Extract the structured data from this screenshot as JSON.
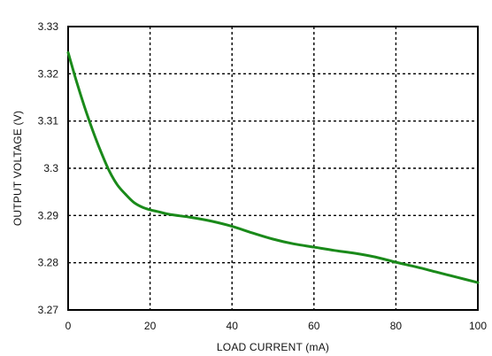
{
  "chart_data": {
    "type": "line",
    "xlabel": "LOAD CURRENT (mA)",
    "ylabel": "OUTPUT VOLTAGE (V)",
    "xlim": [
      0,
      100
    ],
    "ylim": [
      3.27,
      3.33
    ],
    "x_ticks": [
      "0",
      "20",
      "40",
      "60",
      "80",
      "100"
    ],
    "y_ticks": [
      "3.33",
      "3.32",
      "3.31",
      "3.3",
      "3.29",
      "3.28",
      "3.27"
    ],
    "grid": true,
    "series_color": "#1a8a1a",
    "series": [
      {
        "x": [
          0,
          2,
          4,
          6,
          8,
          10,
          12,
          14,
          16,
          18,
          20,
          22,
          25,
          30,
          35,
          40,
          45,
          50,
          55,
          60,
          65,
          70,
          75,
          80,
          85,
          90,
          95,
          100
        ],
        "y": [
          3.3245,
          3.3185,
          3.313,
          3.308,
          3.3035,
          3.2995,
          3.2965,
          3.2945,
          3.2928,
          3.2918,
          3.2912,
          3.2908,
          3.2902,
          3.2896,
          3.2888,
          3.2877,
          3.2863,
          3.285,
          3.284,
          3.2833,
          3.2826,
          3.282,
          3.2812,
          3.2801,
          3.2791,
          3.278,
          3.2769,
          3.2758
        ]
      }
    ]
  }
}
